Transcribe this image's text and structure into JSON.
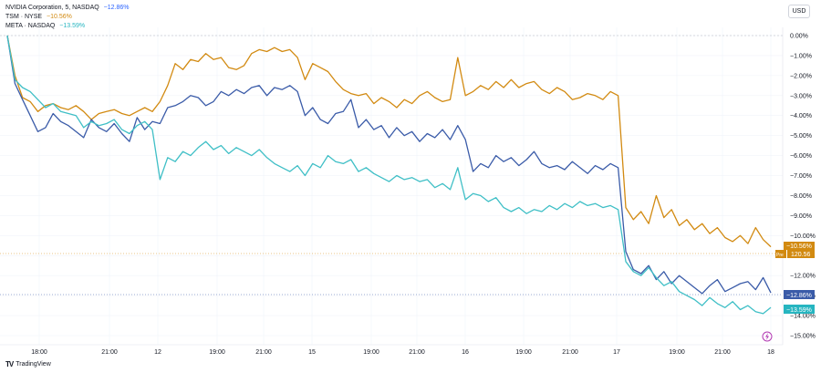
{
  "legend": [
    {
      "name": "NVIDIA Corporation, 5, NASDAQ",
      "change": "−12.86%",
      "color": "#2962ff"
    },
    {
      "name": "TSM · NYSE",
      "change": "−10.56%",
      "color": "#d28a11"
    },
    {
      "name": "META · NASDAQ",
      "change": "−13.59%",
      "color": "#26b5c0"
    }
  ],
  "currency_button": "USD",
  "brand": {
    "logo": "TV",
    "name": "TradingView"
  },
  "colors": {
    "nvda": "#3a5ba8",
    "tsm": "#d28a11",
    "meta": "#3fbfc6",
    "grid": "#f0f3fa",
    "axis_text": "#131722",
    "event_icon": "#b23bb3"
  },
  "badges": {
    "tsm_pct": "−10.56%",
    "tsm_tag": "Pre",
    "tsm_price": "120.56",
    "nvda_pct": "−12.86%",
    "meta_pct": "−13.59%"
  },
  "chart_data": {
    "type": "line",
    "title": "",
    "x_ticks": [
      "18:00",
      "21:00",
      "12",
      "19:00",
      "21:00",
      "15",
      "19:00",
      "21:00",
      "16",
      "19:00",
      "21:00",
      "17",
      "19:00",
      "21:00",
      "18"
    ],
    "y_ticks": [
      "0.00%",
      "−1.00%",
      "−2.00%",
      "−3.00%",
      "−4.00%",
      "−5.00%",
      "−6.00%",
      "−7.00%",
      "−8.00%",
      "−9.00%",
      "−10.00%",
      "−11.00%",
      "−12.00%",
      "−13.00%",
      "−14.00%",
      "−15.00%"
    ],
    "ylim": [
      -15,
      0
    ],
    "x_range": [
      0,
      100
    ],
    "series": [
      {
        "name": "TSM · NYSE",
        "key": "tsm",
        "x": [
          0,
          1,
          2,
          3,
          4,
          5,
          6,
          7,
          8,
          9,
          10,
          11,
          12,
          13,
          14,
          15,
          16,
          17,
          18,
          19,
          20,
          21,
          22,
          23,
          24,
          25,
          26,
          27,
          28,
          29,
          30,
          31,
          32,
          33,
          34,
          35,
          36,
          37,
          38,
          39,
          40,
          41,
          42,
          43,
          44,
          45,
          46,
          47,
          48,
          49,
          50,
          51,
          52,
          53,
          54,
          55,
          56,
          57,
          58,
          59,
          60,
          61,
          62,
          63,
          64,
          65,
          66,
          67,
          68,
          69,
          70,
          71,
          72,
          73,
          74,
          75,
          76,
          77,
          78,
          79,
          80,
          81,
          82,
          83,
          84,
          85,
          86,
          87,
          88,
          89,
          90,
          91,
          92,
          93,
          94,
          95,
          96,
          97,
          98,
          99,
          100
        ],
        "values": [
          0.0,
          -2.0,
          -3.1,
          -3.3,
          -3.8,
          -3.5,
          -3.4,
          -3.6,
          -3.7,
          -3.5,
          -3.8,
          -4.2,
          -3.9,
          -3.8,
          -3.7,
          -3.9,
          -4.0,
          -3.8,
          -3.6,
          -3.8,
          -3.3,
          -2.5,
          -1.4,
          -1.7,
          -1.2,
          -1.3,
          -0.9,
          -1.2,
          -1.1,
          -1.6,
          -1.7,
          -1.5,
          -0.9,
          -0.7,
          -0.8,
          -0.6,
          -0.8,
          -0.7,
          -1.1,
          -2.2,
          -1.4,
          -1.6,
          -1.8,
          -2.3,
          -2.7,
          -2.9,
          -3.0,
          -2.9,
          -3.4,
          -3.1,
          -3.3,
          -3.6,
          -3.2,
          -3.4,
          -3.0,
          -2.8,
          -3.1,
          -3.3,
          -3.2,
          -1.1,
          -3.0,
          -2.8,
          -2.5,
          -2.7,
          -2.3,
          -2.6,
          -2.2,
          -2.6,
          -2.4,
          -2.3,
          -2.7,
          -2.9,
          -2.6,
          -2.8,
          -3.2,
          -3.1,
          -2.9,
          -3.0,
          -3.2,
          -2.8,
          -3.0,
          -8.6,
          -9.2,
          -8.8,
          -9.4,
          -8.0,
          -9.1,
          -8.7,
          -9.5,
          -9.2,
          -9.7,
          -9.4,
          -9.9,
          -9.6,
          -10.1,
          -10.3,
          -10.0,
          -10.4,
          -9.6,
          -10.2,
          -10.56
        ]
      },
      {
        "name": "NVIDIA Corporation, 5, NASDAQ",
        "key": "nvda",
        "x": [
          0,
          1,
          2,
          3,
          4,
          5,
          6,
          7,
          8,
          9,
          10,
          11,
          12,
          13,
          14,
          15,
          16,
          17,
          18,
          19,
          20,
          21,
          22,
          23,
          24,
          25,
          26,
          27,
          28,
          29,
          30,
          31,
          32,
          33,
          34,
          35,
          36,
          37,
          38,
          39,
          40,
          41,
          42,
          43,
          44,
          45,
          46,
          47,
          48,
          49,
          50,
          51,
          52,
          53,
          54,
          55,
          56,
          57,
          58,
          59,
          60,
          61,
          62,
          63,
          64,
          65,
          66,
          67,
          68,
          69,
          70,
          71,
          72,
          73,
          74,
          75,
          76,
          77,
          78,
          79,
          80,
          81,
          82,
          83,
          84,
          85,
          86,
          87,
          88,
          89,
          90,
          91,
          92,
          93,
          94,
          95,
          96,
          97,
          98,
          99,
          100
        ],
        "values": [
          0.0,
          -2.4,
          -3.2,
          -4.0,
          -4.8,
          -4.6,
          -3.9,
          -4.3,
          -4.5,
          -4.8,
          -5.1,
          -4.2,
          -4.6,
          -4.8,
          -4.4,
          -4.9,
          -5.3,
          -4.1,
          -4.7,
          -4.3,
          -4.4,
          -3.6,
          -3.5,
          -3.3,
          -3.0,
          -3.1,
          -3.5,
          -3.3,
          -2.8,
          -3.0,
          -2.7,
          -2.9,
          -2.6,
          -2.5,
          -3.0,
          -2.6,
          -2.7,
          -2.5,
          -2.8,
          -4.0,
          -3.6,
          -4.2,
          -4.4,
          -3.9,
          -3.8,
          -3.2,
          -4.6,
          -4.2,
          -4.7,
          -4.5,
          -5.1,
          -4.6,
          -5.0,
          -4.8,
          -5.3,
          -4.9,
          -5.1,
          -4.7,
          -5.2,
          -4.5,
          -5.2,
          -6.8,
          -6.4,
          -6.6,
          -6.0,
          -6.3,
          -6.1,
          -6.5,
          -6.2,
          -5.8,
          -6.4,
          -6.6,
          -6.5,
          -6.7,
          -6.3,
          -6.6,
          -6.9,
          -6.5,
          -6.7,
          -6.4,
          -6.6,
          -10.8,
          -11.7,
          -11.9,
          -11.5,
          -12.2,
          -11.8,
          -12.4,
          -12.0,
          -12.3,
          -12.6,
          -12.9,
          -12.5,
          -12.2,
          -12.8,
          -12.6,
          -12.4,
          -12.3,
          -12.7,
          -12.1,
          -12.86
        ]
      },
      {
        "name": "META · NASDAQ",
        "key": "meta",
        "x": [
          0,
          1,
          2,
          3,
          4,
          5,
          6,
          7,
          8,
          9,
          10,
          11,
          12,
          13,
          14,
          15,
          16,
          17,
          18,
          19,
          20,
          21,
          22,
          23,
          24,
          25,
          26,
          27,
          28,
          29,
          30,
          31,
          32,
          33,
          34,
          35,
          36,
          37,
          38,
          39,
          40,
          41,
          42,
          43,
          44,
          45,
          46,
          47,
          48,
          49,
          50,
          51,
          52,
          53,
          54,
          55,
          56,
          57,
          58,
          59,
          60,
          61,
          62,
          63,
          64,
          65,
          66,
          67,
          68,
          69,
          70,
          71,
          72,
          73,
          74,
          75,
          76,
          77,
          78,
          79,
          80,
          81,
          82,
          83,
          84,
          85,
          86,
          87,
          88,
          89,
          90,
          91,
          92,
          93,
          94,
          95,
          96,
          97,
          98,
          99,
          100
        ],
        "values": [
          0.0,
          -2.2,
          -2.6,
          -2.8,
          -3.2,
          -3.6,
          -3.4,
          -3.8,
          -3.9,
          -4.0,
          -4.6,
          -4.3,
          -4.5,
          -4.4,
          -4.2,
          -4.7,
          -4.9,
          -4.5,
          -4.3,
          -4.7,
          -7.2,
          -6.1,
          -6.3,
          -5.8,
          -6.0,
          -5.6,
          -5.3,
          -5.7,
          -5.5,
          -5.9,
          -5.6,
          -5.8,
          -6.0,
          -5.7,
          -6.1,
          -6.4,
          -6.6,
          -6.8,
          -6.5,
          -7.0,
          -6.4,
          -6.6,
          -6.0,
          -6.3,
          -6.4,
          -6.2,
          -6.8,
          -6.6,
          -6.9,
          -7.1,
          -7.3,
          -7.0,
          -7.2,
          -7.1,
          -7.3,
          -7.2,
          -7.6,
          -7.4,
          -7.7,
          -6.6,
          -8.2,
          -7.9,
          -8.0,
          -8.3,
          -8.1,
          -8.6,
          -8.8,
          -8.6,
          -8.9,
          -8.7,
          -8.8,
          -8.5,
          -8.7,
          -8.4,
          -8.6,
          -8.3,
          -8.5,
          -8.4,
          -8.6,
          -8.5,
          -8.7,
          -11.3,
          -11.8,
          -12.0,
          -11.6,
          -12.1,
          -12.5,
          -12.3,
          -12.8,
          -13.0,
          -13.2,
          -13.5,
          -13.1,
          -13.4,
          -13.6,
          -13.3,
          -13.7,
          -13.5,
          -13.8,
          -13.9,
          -13.59
        ]
      }
    ]
  }
}
